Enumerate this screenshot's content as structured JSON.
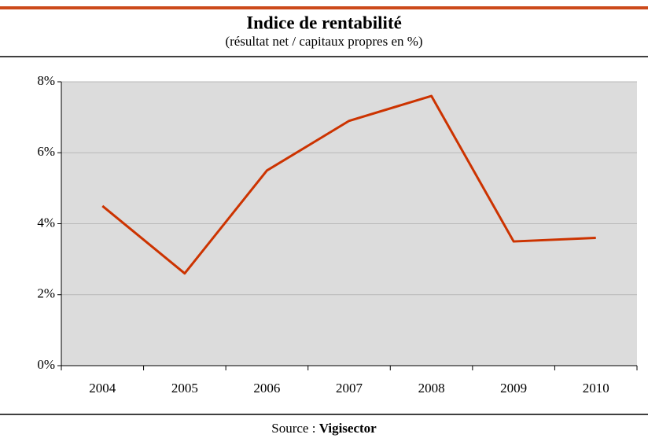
{
  "chart_data": {
    "type": "line",
    "title": "Indice de rentabilité",
    "subtitle": "(résultat net / capitaux propres en %)",
    "categories": [
      "2004",
      "2005",
      "2006",
      "2007",
      "2008",
      "2009",
      "2010"
    ],
    "series": [
      {
        "name": "Indice de rentabilité",
        "color": "#cc3300",
        "values": [
          4.5,
          2.6,
          5.5,
          6.9,
          7.6,
          3.5,
          3.6
        ]
      }
    ],
    "ylim": [
      0,
      8
    ],
    "yticks": [
      {
        "value": 0,
        "label": "0%"
      },
      {
        "value": 2,
        "label": "2%"
      },
      {
        "value": 4,
        "label": "4%"
      },
      {
        "value": 6,
        "label": "6%"
      },
      {
        "value": 8,
        "label": "8%"
      }
    ],
    "grid": true,
    "source_label": "Source :",
    "source": "Vigisector"
  }
}
